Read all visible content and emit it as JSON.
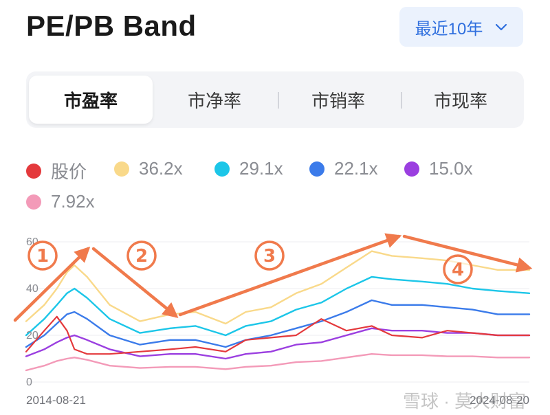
{
  "header": {
    "title": "PE/PB Band",
    "range_label": "最近10年"
  },
  "tabs": [
    {
      "label": "市盈率",
      "active": true
    },
    {
      "label": "市净率",
      "active": false
    },
    {
      "label": "市销率",
      "active": false
    },
    {
      "label": "市现率",
      "active": false
    }
  ],
  "legend": [
    {
      "label": "股价",
      "color": "#e4393c"
    },
    {
      "label": "36.2x",
      "color": "#f9d98a"
    },
    {
      "label": "29.1x",
      "color": "#1cc6e8"
    },
    {
      "label": "22.1x",
      "color": "#3b7bea"
    },
    {
      "label": "15.0x",
      "color": "#9b3fe0"
    },
    {
      "label": "7.92x",
      "color": "#f39ab8"
    }
  ],
  "annotations": {
    "color": "#f07a4c",
    "labels": [
      "①",
      "②",
      "③",
      "④"
    ]
  },
  "watermark": "雪球 · 莫大财富",
  "chart_data": {
    "type": "line",
    "x_start": "2014-08-21",
    "x_end": "2024-08-20",
    "x_tick_labels": [
      "2014-08-21",
      "2024-08-20"
    ],
    "y_tick_labels": [
      "0",
      "20",
      "40",
      "60"
    ],
    "ylim": [
      0,
      60
    ],
    "grid": true,
    "x": [
      2014.64,
      2015.0,
      2015.25,
      2015.45,
      2015.6,
      2015.85,
      2016.3,
      2016.9,
      2017.5,
      2018.0,
      2018.6,
      2019.0,
      2019.5,
      2020.0,
      2020.5,
      2021.0,
      2021.5,
      2021.9,
      2022.5,
      2023.0,
      2023.5,
      2024.0,
      2024.63
    ],
    "series": [
      {
        "name": "36.2x",
        "color": "#f9d98a",
        "values": [
          26,
          33,
          40,
          47,
          50,
          45,
          33,
          26,
          29,
          30,
          25,
          30,
          32,
          38,
          42,
          49,
          56,
          54,
          53,
          52,
          50,
          48,
          48
        ]
      },
      {
        "name": "29.1x",
        "color": "#1cc6e8",
        "values": [
          20,
          27,
          33,
          38,
          40,
          36,
          27,
          21,
          23,
          24,
          20,
          24,
          26,
          31,
          34,
          40,
          45,
          44,
          43,
          42,
          40,
          39,
          38
        ]
      },
      {
        "name": "22.1x",
        "color": "#3b7bea",
        "values": [
          15,
          20,
          25,
          29,
          30,
          27,
          20,
          16,
          18,
          18,
          15,
          18,
          20,
          23,
          26,
          30,
          35,
          33,
          33,
          32,
          31,
          29,
          29
        ]
      },
      {
        "name": "15.0x",
        "color": "#9b3fe0",
        "values": [
          11,
          14,
          17,
          19,
          20,
          18,
          14,
          11,
          12,
          12,
          10,
          12,
          13,
          16,
          17,
          20,
          23,
          22,
          22,
          21,
          21,
          20,
          20
        ]
      },
      {
        "name": "7.92x",
        "color": "#f39ab8",
        "values": [
          5,
          7,
          9,
          10,
          10.5,
          9.5,
          7,
          6,
          6.5,
          6.5,
          5.5,
          6.5,
          7,
          8.5,
          9,
          10.5,
          12,
          11.5,
          11.5,
          11,
          11,
          10.5,
          10.5
        ]
      },
      {
        "name": "股价",
        "color": "#e4393c",
        "values": [
          13,
          22,
          28,
          22,
          14,
          12,
          12,
          13,
          14,
          15,
          13,
          18,
          19,
          20,
          27,
          22,
          24,
          20,
          19,
          22,
          21,
          20,
          20
        ]
      }
    ]
  }
}
